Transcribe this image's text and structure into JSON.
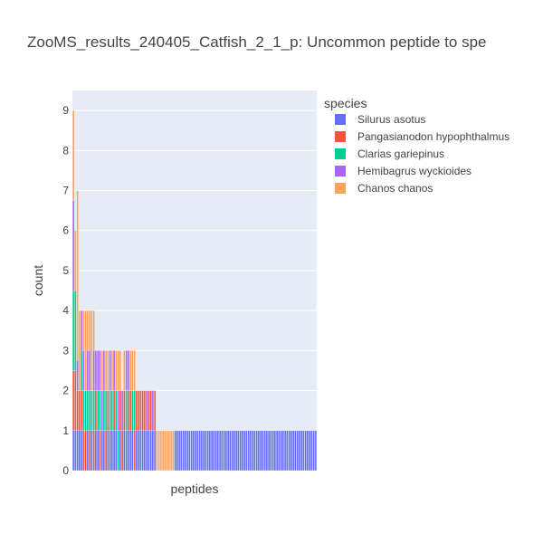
{
  "chart_data": {
    "type": "bar",
    "barmode": "stack",
    "title": "ZooMS_results_240405_Catfish_2_1_p: Uncommon peptide to spe",
    "xlabel": "peptides",
    "ylabel": "count",
    "ylim": [
      0,
      9.5
    ],
    "yticks": [
      "0",
      "1",
      "2",
      "3",
      "4",
      "5",
      "6",
      "7",
      "8",
      "9"
    ],
    "grid": true,
    "legend_title": "species",
    "legend_position": "right",
    "n_peptides": 120,
    "series": [
      {
        "name": "Silurus asotus",
        "color": "#636efa",
        "values": [
          1,
          1,
          1,
          1,
          1,
          0,
          0,
          1,
          0,
          1,
          0,
          1,
          1,
          0,
          1,
          1,
          0,
          1,
          1,
          1,
          1,
          1,
          0,
          1,
          0,
          1,
          1,
          1,
          1,
          1,
          0,
          1,
          1,
          1,
          1,
          1,
          1,
          1,
          1,
          1,
          1,
          0,
          0,
          0,
          0,
          0,
          0,
          0,
          0,
          0,
          1,
          1,
          1,
          1,
          1,
          1,
          1,
          1,
          1,
          1,
          1,
          1,
          1,
          1,
          1,
          1,
          1,
          1,
          1,
          1,
          1,
          1,
          1,
          1,
          1,
          1,
          1,
          1,
          1,
          1,
          1,
          1,
          1,
          1,
          1,
          1,
          1,
          1,
          1,
          1,
          1,
          1,
          1,
          1,
          1,
          1,
          1,
          1,
          1,
          1,
          1,
          1,
          1,
          1,
          1,
          1,
          1,
          1,
          1,
          1,
          1,
          1,
          1,
          1,
          1,
          1,
          1,
          1,
          1,
          1
        ]
      },
      {
        "name": "Pangasianodon hypophthalmus",
        "color": "#ef553b",
        "values": [
          1.5,
          1.5,
          1,
          1,
          1,
          1,
          1,
          0,
          1,
          0,
          1,
          1,
          0,
          1,
          0,
          0,
          1,
          1,
          0,
          0,
          1,
          0,
          0,
          1,
          1,
          1,
          0,
          1,
          1,
          0,
          1,
          1,
          1,
          1,
          1,
          1,
          0,
          1,
          1,
          0,
          1,
          0,
          0,
          0,
          0,
          0,
          0,
          0,
          0,
          0,
          0,
          0,
          0,
          0,
          0,
          0,
          0,
          0,
          0,
          0,
          0,
          0,
          0,
          0,
          0,
          0,
          0,
          0,
          0,
          0,
          0,
          0,
          0,
          0,
          0,
          0,
          0,
          0,
          0,
          0,
          0,
          0,
          0,
          0,
          0,
          0,
          0,
          0,
          0,
          0,
          0,
          0,
          0,
          0,
          0,
          0,
          0,
          0,
          0,
          0,
          0,
          0,
          0,
          0,
          0,
          0,
          0,
          0,
          0,
          0,
          0,
          0,
          0,
          0,
          0,
          0,
          0,
          0,
          0,
          0
        ]
      },
      {
        "name": "Clarias gariepinus",
        "color": "#00cc96",
        "values": [
          2,
          2,
          0,
          0,
          1,
          1,
          1,
          1,
          1,
          1,
          1,
          0,
          1,
          1,
          0,
          1,
          1,
          0,
          1,
          1,
          0,
          1,
          1,
          0,
          0,
          0,
          1,
          0,
          0,
          1,
          1,
          0,
          0,
          0,
          0,
          0,
          0,
          0,
          0,
          0,
          0,
          0,
          0,
          0,
          0,
          0,
          0,
          0,
          0,
          0,
          0,
          0,
          0,
          0,
          0,
          0,
          0,
          0,
          0,
          0,
          0,
          0,
          0,
          0,
          0,
          0,
          0,
          0,
          0,
          0,
          0,
          0,
          0,
          0,
          0,
          0,
          0,
          0,
          0,
          0,
          0,
          0,
          0,
          0,
          0,
          0,
          0,
          0,
          0,
          0,
          0,
          0,
          0,
          0,
          0,
          0,
          0,
          0,
          0,
          0,
          0,
          0,
          0,
          0,
          0,
          0,
          0,
          0,
          0,
          0,
          0,
          0,
          0,
          0,
          0,
          0,
          0,
          0,
          0,
          0
        ]
      },
      {
        "name": "Hemibagrus wyckioides",
        "color": "#ab63fa",
        "values": [
          2.25,
          0,
          0.75,
          0,
          1,
          1,
          0,
          1,
          1,
          0,
          1,
          1,
          1,
          1,
          1,
          1,
          0,
          0,
          1,
          0,
          1,
          0,
          1,
          0,
          1,
          0,
          1,
          1,
          0,
          0,
          0,
          0,
          0,
          0,
          0,
          0,
          1,
          0,
          0,
          1,
          0,
          0,
          0,
          0,
          0,
          0,
          0,
          0,
          0,
          0,
          0,
          0,
          0,
          0,
          0,
          0,
          0,
          0,
          0,
          0,
          0,
          0,
          0,
          0,
          0,
          0,
          0,
          0,
          0,
          0,
          0,
          0,
          0,
          0,
          0,
          0,
          0,
          0,
          0,
          0,
          0,
          0,
          0,
          0,
          0,
          0,
          0,
          0,
          0,
          0,
          0,
          0,
          0,
          0,
          0,
          0,
          0,
          0,
          0,
          0,
          0,
          0,
          0,
          0,
          0,
          0,
          0,
          0,
          0,
          0,
          0,
          0,
          0,
          0,
          0,
          0,
          0,
          0,
          0,
          0
        ]
      },
      {
        "name": "Chanos chanos",
        "color": "#ffa15a",
        "values": [
          2.25,
          1.5,
          4.25,
          2,
          0,
          1,
          2,
          1,
          1,
          2,
          1,
          0,
          0,
          0,
          1,
          0,
          1,
          1,
          0,
          1,
          0,
          1,
          1,
          1,
          0,
          1,
          0,
          0,
          1,
          1,
          1,
          0,
          0,
          0,
          0,
          0,
          0,
          0,
          0,
          0,
          0,
          1,
          1,
          1,
          1,
          1,
          1,
          1,
          1,
          1,
          0,
          0,
          0,
          0,
          0,
          0,
          0,
          0,
          0,
          0,
          0,
          0,
          0,
          0,
          0,
          0,
          0,
          0,
          0,
          0,
          0,
          0,
          0,
          0,
          0,
          0,
          0,
          0,
          0,
          0,
          0,
          0,
          0,
          0,
          0,
          0,
          0,
          0,
          0,
          0,
          0,
          0,
          0,
          0,
          0,
          0,
          0,
          0,
          0,
          0,
          0,
          0,
          0,
          0,
          0,
          0,
          0,
          0,
          0,
          0,
          0,
          0,
          0,
          0,
          0,
          0,
          0,
          0,
          0,
          0
        ]
      }
    ]
  },
  "colors": {
    "plot_background": "#e5ecf6",
    "gridline": "#ffffff",
    "text": "#444444"
  }
}
